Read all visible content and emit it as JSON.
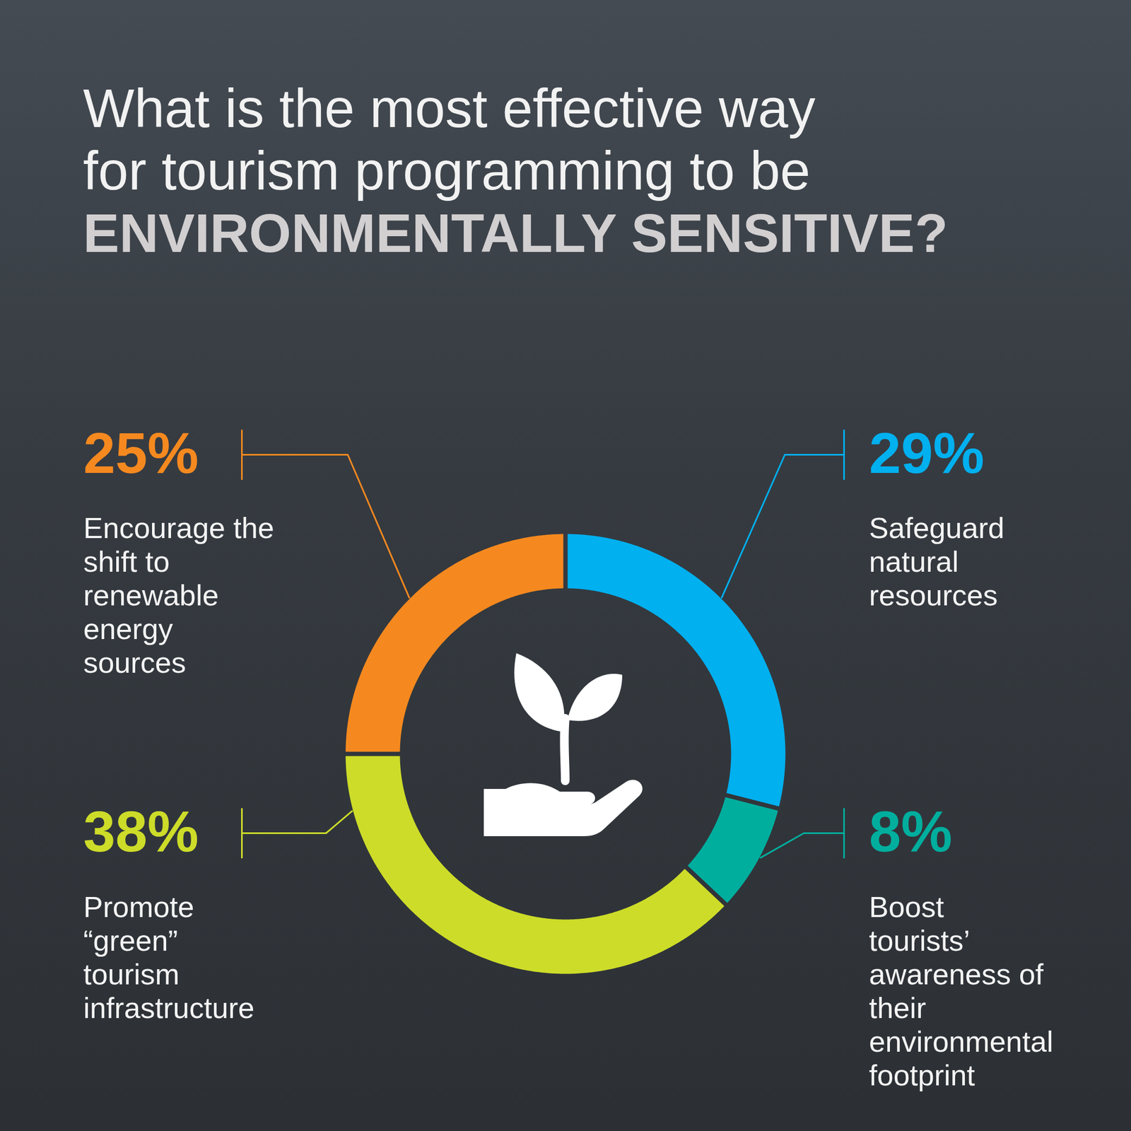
{
  "chart_data": {
    "type": "donut",
    "title": "What is the most effective way for tourism programming to be ENVIRONMENTALLY SENSITIVE?",
    "categories": [
      "Safeguard natural resources",
      "Boost tourists’ awareness of their environmental footprint",
      "Promote “green” tourism infrastructure",
      "Encourage the shift to renewable energy sources"
    ],
    "values": [
      29,
      8,
      38,
      25
    ],
    "value_labels": [
      "29%",
      "8%",
      "38%",
      "25%"
    ],
    "colors": [
      "#00b0ef",
      "#00ae9e",
      "#cddc29",
      "#f5891f"
    ],
    "data_labels": true
  }
}
